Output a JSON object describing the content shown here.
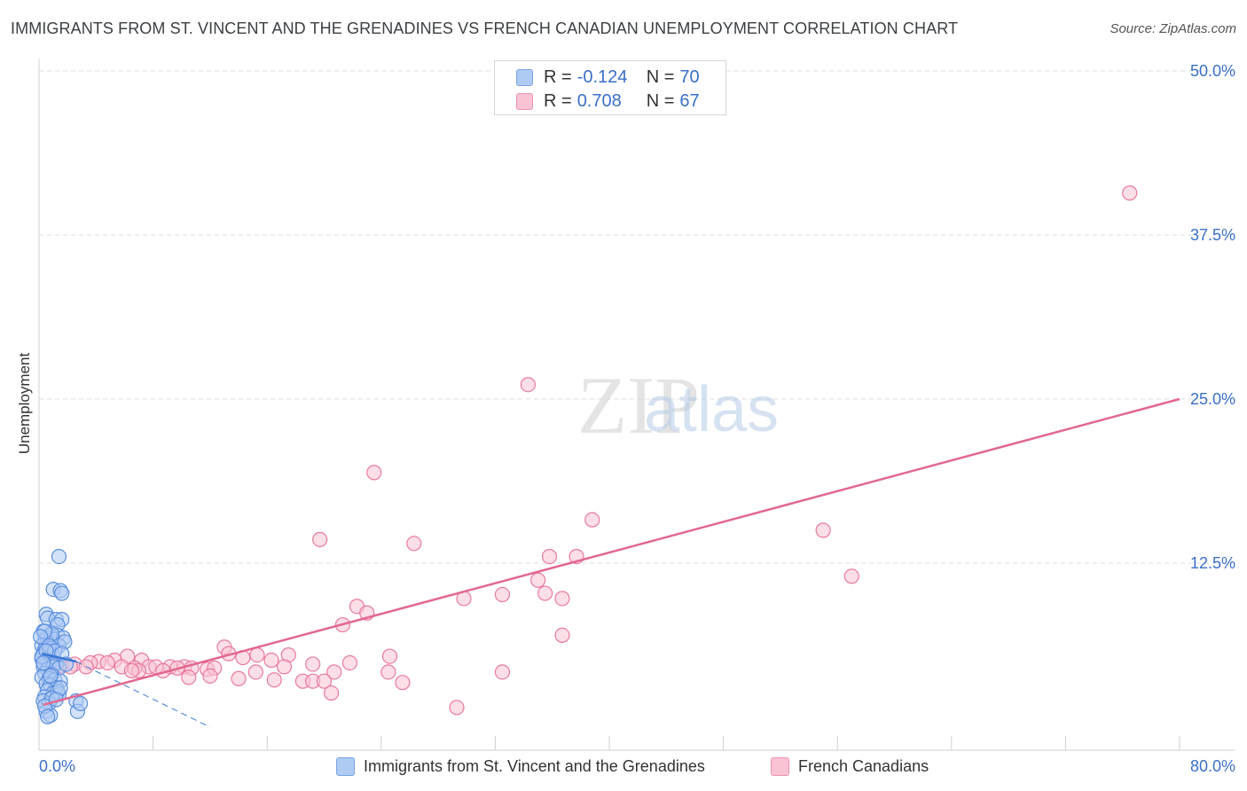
{
  "header": {
    "title": "IMMIGRANTS FROM ST. VINCENT AND THE GRENADINES VS FRENCH CANADIAN UNEMPLOYMENT CORRELATION CHART",
    "source": "Source: ZipAtlas.com"
  },
  "watermark": {
    "zip": "ZIP",
    "atlas": "atlas"
  },
  "legend_top": {
    "rows": [
      {
        "r_label": "R =",
        "r_value": "-0.124",
        "n_label": "N =",
        "n_value": "70"
      },
      {
        "r_label": "R =",
        "r_value": "0.708",
        "n_label": "N =",
        "n_value": "67"
      }
    ]
  },
  "legend_bottom": {
    "series_a": "Immigrants from St. Vincent and the Grenadines",
    "series_b": "French Canadians"
  },
  "colors": {
    "blue_fill": "#aecbf4",
    "blue_stroke": "#5b8fdd",
    "blue_line": "#3a78d4",
    "pink_fill": "#f9c3d4",
    "pink_stroke": "#e8799f",
    "pink_line": "#e2678f",
    "axis_label": "#3a6fc9",
    "grid": "#dcdcdc"
  },
  "chart_data": {
    "type": "scatter",
    "title": "IMMIGRANTS FROM ST. VINCENT AND THE GRENADINES VS FRENCH CANADIAN UNEMPLOYMENT CORRELATION CHART",
    "xlabel": "",
    "ylabel": "Unemployment",
    "xlim": [
      0,
      80
    ],
    "ylim": [
      0,
      50
    ],
    "x_tick_labels": [
      "0.0%",
      "80.0%"
    ],
    "y_ticks": [
      12.5,
      25,
      37.5,
      50
    ],
    "y_tick_labels": [
      "12.5%",
      "25.0%",
      "37.5%",
      "50.0%"
    ],
    "grid": true,
    "series": [
      {
        "name": "Immigrants from St. Vincent and the Grenadines",
        "color": "blue",
        "points": [
          [
            1.4,
            13.0
          ],
          [
            1.0,
            10.5
          ],
          [
            1.5,
            10.4
          ],
          [
            1.6,
            10.2
          ],
          [
            0.5,
            8.6
          ],
          [
            0.6,
            8.3
          ],
          [
            1.2,
            8.2
          ],
          [
            1.6,
            8.2
          ],
          [
            1.3,
            7.8
          ],
          [
            0.3,
            7.3
          ],
          [
            0.8,
            7.0
          ],
          [
            1.3,
            7.0
          ],
          [
            0.5,
            6.8
          ],
          [
            1.0,
            6.7
          ],
          [
            0.4,
            6.6
          ],
          [
            1.7,
            6.8
          ],
          [
            0.6,
            6.4
          ],
          [
            0.2,
            6.2
          ],
          [
            0.4,
            5.9
          ],
          [
            0.9,
            6.0
          ],
          [
            1.4,
            6.2
          ],
          [
            1.8,
            6.5
          ],
          [
            0.3,
            5.6
          ],
          [
            0.7,
            5.7
          ],
          [
            1.0,
            5.4
          ],
          [
            0.2,
            5.2
          ],
          [
            0.5,
            5.1
          ],
          [
            0.8,
            5.0
          ],
          [
            1.2,
            4.9
          ],
          [
            0.3,
            4.6
          ],
          [
            0.6,
            4.4
          ],
          [
            1.0,
            4.6
          ],
          [
            1.4,
            4.5
          ],
          [
            0.4,
            4.1
          ],
          [
            0.9,
            4.0
          ],
          [
            0.2,
            3.8
          ],
          [
            0.7,
            3.7
          ],
          [
            1.1,
            3.6
          ],
          [
            1.5,
            3.5
          ],
          [
            0.5,
            3.3
          ],
          [
            0.8,
            3.2
          ],
          [
            1.2,
            3.0
          ],
          [
            0.6,
            2.8
          ],
          [
            1.0,
            2.6
          ],
          [
            1.4,
            2.5
          ],
          [
            0.4,
            2.3
          ],
          [
            0.3,
            2.0
          ],
          [
            0.7,
            1.8
          ],
          [
            0.5,
            1.2
          ],
          [
            0.8,
            0.9
          ],
          [
            1.3,
            2.7
          ],
          [
            1.5,
            3.0
          ],
          [
            0.9,
            2.2
          ],
          [
            0.4,
            1.6
          ],
          [
            2.6,
            2.0
          ],
          [
            2.7,
            1.2
          ],
          [
            2.9,
            1.8
          ],
          [
            0.6,
            0.8
          ],
          [
            1.2,
            2.1
          ],
          [
            0.2,
            5.4
          ],
          [
            0.9,
            7.1
          ],
          [
            0.4,
            7.3
          ],
          [
            0.1,
            6.9
          ],
          [
            0.7,
            6.2
          ],
          [
            1.1,
            5.8
          ],
          [
            1.6,
            5.6
          ],
          [
            1.9,
            4.8
          ],
          [
            0.5,
            5.8
          ],
          [
            0.3,
            4.9
          ],
          [
            0.8,
            3.9
          ]
        ]
      },
      {
        "name": "French Canadians",
        "color": "pink",
        "points": [
          [
            76.5,
            40.7
          ],
          [
            34.3,
            26.1
          ],
          [
            23.5,
            19.4
          ],
          [
            38.8,
            15.8
          ],
          [
            55.0,
            15.0
          ],
          [
            19.7,
            14.3
          ],
          [
            26.3,
            14.0
          ],
          [
            35.8,
            13.0
          ],
          [
            37.7,
            13.0
          ],
          [
            57.0,
            11.5
          ],
          [
            35.0,
            11.2
          ],
          [
            35.5,
            10.2
          ],
          [
            32.5,
            10.1
          ],
          [
            29.8,
            9.8
          ],
          [
            36.7,
            9.8
          ],
          [
            22.3,
            9.2
          ],
          [
            23.0,
            8.7
          ],
          [
            21.3,
            7.8
          ],
          [
            36.7,
            7.0
          ],
          [
            13.0,
            6.1
          ],
          [
            13.3,
            5.6
          ],
          [
            15.3,
            5.5
          ],
          [
            17.5,
            5.5
          ],
          [
            24.6,
            5.4
          ],
          [
            14.3,
            5.3
          ],
          [
            16.3,
            5.1
          ],
          [
            21.8,
            4.9
          ],
          [
            19.2,
            4.8
          ],
          [
            17.2,
            4.6
          ],
          [
            6.2,
            5.4
          ],
          [
            5.3,
            5.1
          ],
          [
            7.2,
            5.1
          ],
          [
            4.2,
            5.0
          ],
          [
            4.8,
            4.9
          ],
          [
            3.6,
            4.9
          ],
          [
            2.5,
            4.8
          ],
          [
            1.5,
            4.7
          ],
          [
            1.0,
            4.9
          ],
          [
            2.2,
            4.6
          ],
          [
            3.3,
            4.6
          ],
          [
            5.8,
            4.6
          ],
          [
            6.7,
            4.5
          ],
          [
            7.7,
            4.6
          ],
          [
            8.2,
            4.6
          ],
          [
            9.2,
            4.6
          ],
          [
            10.2,
            4.6
          ],
          [
            11.8,
            4.4
          ],
          [
            12.3,
            4.5
          ],
          [
            10.7,
            4.5
          ],
          [
            9.7,
            4.5
          ],
          [
            8.7,
            4.3
          ],
          [
            7.0,
            4.3
          ],
          [
            6.5,
            4.3
          ],
          [
            15.2,
            4.2
          ],
          [
            20.7,
            4.2
          ],
          [
            24.5,
            4.2
          ],
          [
            32.5,
            4.2
          ],
          [
            12.0,
            3.9
          ],
          [
            10.5,
            3.8
          ],
          [
            14.0,
            3.7
          ],
          [
            16.5,
            3.6
          ],
          [
            18.5,
            3.5
          ],
          [
            19.2,
            3.5
          ],
          [
            20.0,
            3.5
          ],
          [
            25.5,
            3.4
          ],
          [
            20.5,
            2.6
          ],
          [
            29.3,
            1.5
          ]
        ]
      }
    ],
    "trend_lines": [
      {
        "series": "Immigrants from St. Vincent and the Grenadines",
        "style": "solid",
        "x": [
          0.2,
          2.6
        ],
        "y": [
          5.6,
          5.0
        ]
      },
      {
        "series": "Immigrants from St. Vincent and the Grenadines",
        "style": "dashed",
        "x": [
          2.6,
          12.0
        ],
        "y": [
          5.0,
          0.0
        ]
      },
      {
        "series": "French Canadians",
        "style": "solid",
        "x": [
          0.3,
          80.0
        ],
        "y": [
          1.7,
          25.0
        ]
      }
    ]
  }
}
